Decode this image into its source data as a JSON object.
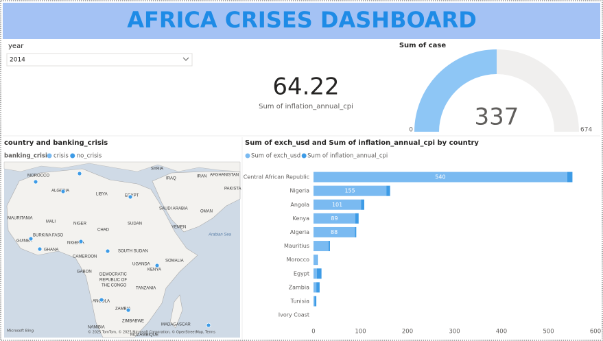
{
  "header": {
    "title": "AFRICA CRISES DASHBOARD"
  },
  "slicer": {
    "label": "year",
    "value": "2014"
  },
  "card": {
    "value": "64.22",
    "label": "Sum of inflation_annual_cpi"
  },
  "chart_data": [
    {
      "type": "gauge",
      "title": "Sum of case",
      "value": 337,
      "ylim": [
        0,
        674
      ],
      "color": "#8ec6f5",
      "track_color": "#f0efee"
    },
    {
      "type": "hbar_stacked",
      "title": "Sum of exch_usd and Sum of inflation_annual_cpi by country",
      "categories": [
        "Central African Republic",
        "Nigeria",
        "Angola",
        "Kenya",
        "Algeria",
        "Mauritius",
        "Morocco",
        "Egypt",
        "Zambia",
        "Tunisia",
        "Ivory Coast"
      ],
      "series": [
        {
          "name": "Sum of exch_usd",
          "color": "#7abaf1",
          "values": [
            540,
            155,
            101,
            89,
            88,
            32,
            8,
            7,
            6,
            2,
            null
          ]
        },
        {
          "name": "Sum of inflation_annual_cpi",
          "color": "#3d9be6",
          "values": [
            11,
            8,
            7,
            7,
            3,
            3,
            1,
            10,
            7,
            4,
            null
          ]
        }
      ],
      "xlim": [
        0,
        600
      ],
      "xticks": [
        0,
        100,
        200,
        300,
        400,
        500,
        600
      ],
      "grid": false
    }
  ],
  "map": {
    "title": "country and banking_crisis",
    "legend_title": "banking_crisis",
    "legend": [
      {
        "name": "crisis",
        "color": "#7abaf1"
      },
      {
        "name": "no_crisis",
        "color": "#3d9be6"
      }
    ],
    "labels": [
      "MOROCCO",
      "ALGERIA",
      "LIBYA",
      "EGYPT",
      "SYRIA",
      "IRAQ",
      "IRAN",
      "AFGHANISTAN",
      "PAKISTA",
      "SAUDI ARABIA",
      "OMAN",
      "YEMEN",
      "MAURITANIA",
      "MALI",
      "NIGER",
      "CHAD",
      "SUDAN",
      "BURKINA FASO",
      "GUINEA",
      "NIGERIA",
      "GHANA",
      "SOUTH SUDAN",
      "CAMEROON",
      "UGANDA",
      "KENYA",
      "SOMALIA",
      "GABON",
      "DEMOCRATIC",
      "REPUBLIC OF",
      "THE CONGO",
      "TANZANIA",
      "ANGOLA",
      "ZAMBIA",
      "NAMIBIA",
      "ZIMBABWE",
      "MADAGASCAR",
      "MOZAMBIQUE",
      "Arabian Sea"
    ],
    "brand": "Microsoft Bing",
    "attribution": "© 2025 TomTom, © 2025 Microsoft Corporation, © OpenStreetMap, Terms"
  }
}
